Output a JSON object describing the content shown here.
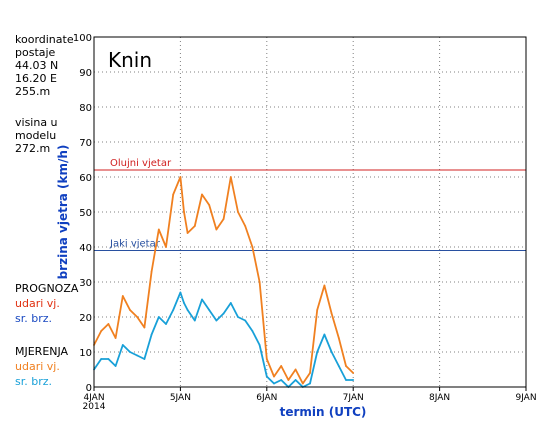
{
  "sidebar": {
    "station_lines": [
      "koordinate",
      "postaje",
      "44.03 N",
      "16.20 E",
      "255.m"
    ],
    "model_lines": [
      "visina u",
      "modelu",
      "272.m"
    ],
    "legend": {
      "forecast_title": "PROGNOZA",
      "forecast_gust": "udari vj.",
      "forecast_mean": "sr. brz.",
      "measured_title": "MJERENJA",
      "measured_gust": "udari vj.",
      "measured_mean": "sr. brz."
    }
  },
  "colors": {
    "forecast_gust": "#e03010",
    "forecast_mean": "#1848c0",
    "measured_gust": "#f08020",
    "measured_mean": "#18a0d8",
    "storm_line": "#d02020",
    "strong_line": "#2850a0",
    "axis_label": "#1040c0",
    "grid": "#808080"
  },
  "chart_data": {
    "type": "line",
    "title": "Knin",
    "xlabel": "termin (UTC)",
    "ylabel": "brzina vjetra (km/h)",
    "ylim": [
      0,
      100
    ],
    "yticks": [
      0,
      10,
      20,
      30,
      40,
      50,
      60,
      70,
      80,
      90,
      100
    ],
    "xlim": [
      "2014-01-04",
      "2014-01-09"
    ],
    "xticks": [
      {
        "date": "2014-01-04",
        "label": "4JAN",
        "sublabel": "2014"
      },
      {
        "date": "2014-01-05",
        "label": "5JAN",
        "sublabel": ""
      },
      {
        "date": "2014-01-06",
        "label": "6JAN",
        "sublabel": ""
      },
      {
        "date": "2014-01-07",
        "label": "7JAN",
        "sublabel": ""
      },
      {
        "date": "2014-01-08",
        "label": "8JAN",
        "sublabel": ""
      },
      {
        "date": "2014-01-09",
        "label": "9JAN",
        "sublabel": ""
      }
    ],
    "grid": true,
    "thresholds": [
      {
        "label": "Olujni vjetar",
        "value": 62,
        "color_key": "storm_line"
      },
      {
        "label": "Jaki vjetar",
        "value": 39,
        "color_key": "strong_line"
      }
    ],
    "series": [
      {
        "name": "udari vj.",
        "group": "MJERENJA",
        "color_key": "measured_gust",
        "x": [
          "2014-01-04 00:00",
          "2014-01-04 02:00",
          "2014-01-04 04:00",
          "2014-01-04 06:00",
          "2014-01-04 08:00",
          "2014-01-04 10:00",
          "2014-01-04 12:00",
          "2014-01-04 14:00",
          "2014-01-04 16:00",
          "2014-01-04 18:00",
          "2014-01-04 20:00",
          "2014-01-04 22:00",
          "2014-01-05 00:00",
          "2014-01-05 01:00",
          "2014-01-05 02:00",
          "2014-01-05 04:00",
          "2014-01-05 06:00",
          "2014-01-05 08:00",
          "2014-01-05 10:00",
          "2014-01-05 12:00",
          "2014-01-05 14:00",
          "2014-01-05 16:00",
          "2014-01-05 18:00",
          "2014-01-05 20:00",
          "2014-01-05 22:00",
          "2014-01-06 00:00",
          "2014-01-06 02:00",
          "2014-01-06 04:00",
          "2014-01-06 06:00",
          "2014-01-06 08:00",
          "2014-01-06 10:00",
          "2014-01-06 12:00",
          "2014-01-06 14:00",
          "2014-01-06 16:00",
          "2014-01-06 18:00",
          "2014-01-06 20:00",
          "2014-01-06 22:00",
          "2014-01-07 00:00"
        ],
        "values": [
          12,
          16,
          18,
          14,
          26,
          22,
          20,
          17,
          33,
          45,
          40,
          55,
          60,
          50,
          44,
          46,
          55,
          52,
          45,
          48,
          60,
          50,
          46,
          40,
          30,
          8,
          3,
          6,
          2,
          5,
          1,
          4,
          22,
          29,
          21,
          14,
          6,
          4
        ]
      },
      {
        "name": "sr. brz.",
        "group": "MJERENJA",
        "color_key": "measured_mean",
        "x": [
          "2014-01-04 00:00",
          "2014-01-04 02:00",
          "2014-01-04 04:00",
          "2014-01-04 06:00",
          "2014-01-04 08:00",
          "2014-01-04 10:00",
          "2014-01-04 12:00",
          "2014-01-04 14:00",
          "2014-01-04 16:00",
          "2014-01-04 18:00",
          "2014-01-04 20:00",
          "2014-01-04 22:00",
          "2014-01-05 00:00",
          "2014-01-05 01:00",
          "2014-01-05 02:00",
          "2014-01-05 04:00",
          "2014-01-05 06:00",
          "2014-01-05 08:00",
          "2014-01-05 10:00",
          "2014-01-05 12:00",
          "2014-01-05 14:00",
          "2014-01-05 16:00",
          "2014-01-05 18:00",
          "2014-01-05 20:00",
          "2014-01-05 22:00",
          "2014-01-06 00:00",
          "2014-01-06 02:00",
          "2014-01-06 04:00",
          "2014-01-06 06:00",
          "2014-01-06 08:00",
          "2014-01-06 10:00",
          "2014-01-06 12:00",
          "2014-01-06 14:00",
          "2014-01-06 16:00",
          "2014-01-06 18:00",
          "2014-01-06 20:00",
          "2014-01-06 22:00",
          "2014-01-07 00:00"
        ],
        "values": [
          5,
          8,
          8,
          6,
          12,
          10,
          9,
          8,
          15,
          20,
          18,
          22,
          27,
          24,
          22,
          19,
          25,
          22,
          19,
          21,
          24,
          20,
          19,
          16,
          12,
          3,
          1,
          2,
          0,
          2,
          0,
          1,
          10,
          15,
          10,
          6,
          2,
          2
        ]
      }
    ]
  }
}
